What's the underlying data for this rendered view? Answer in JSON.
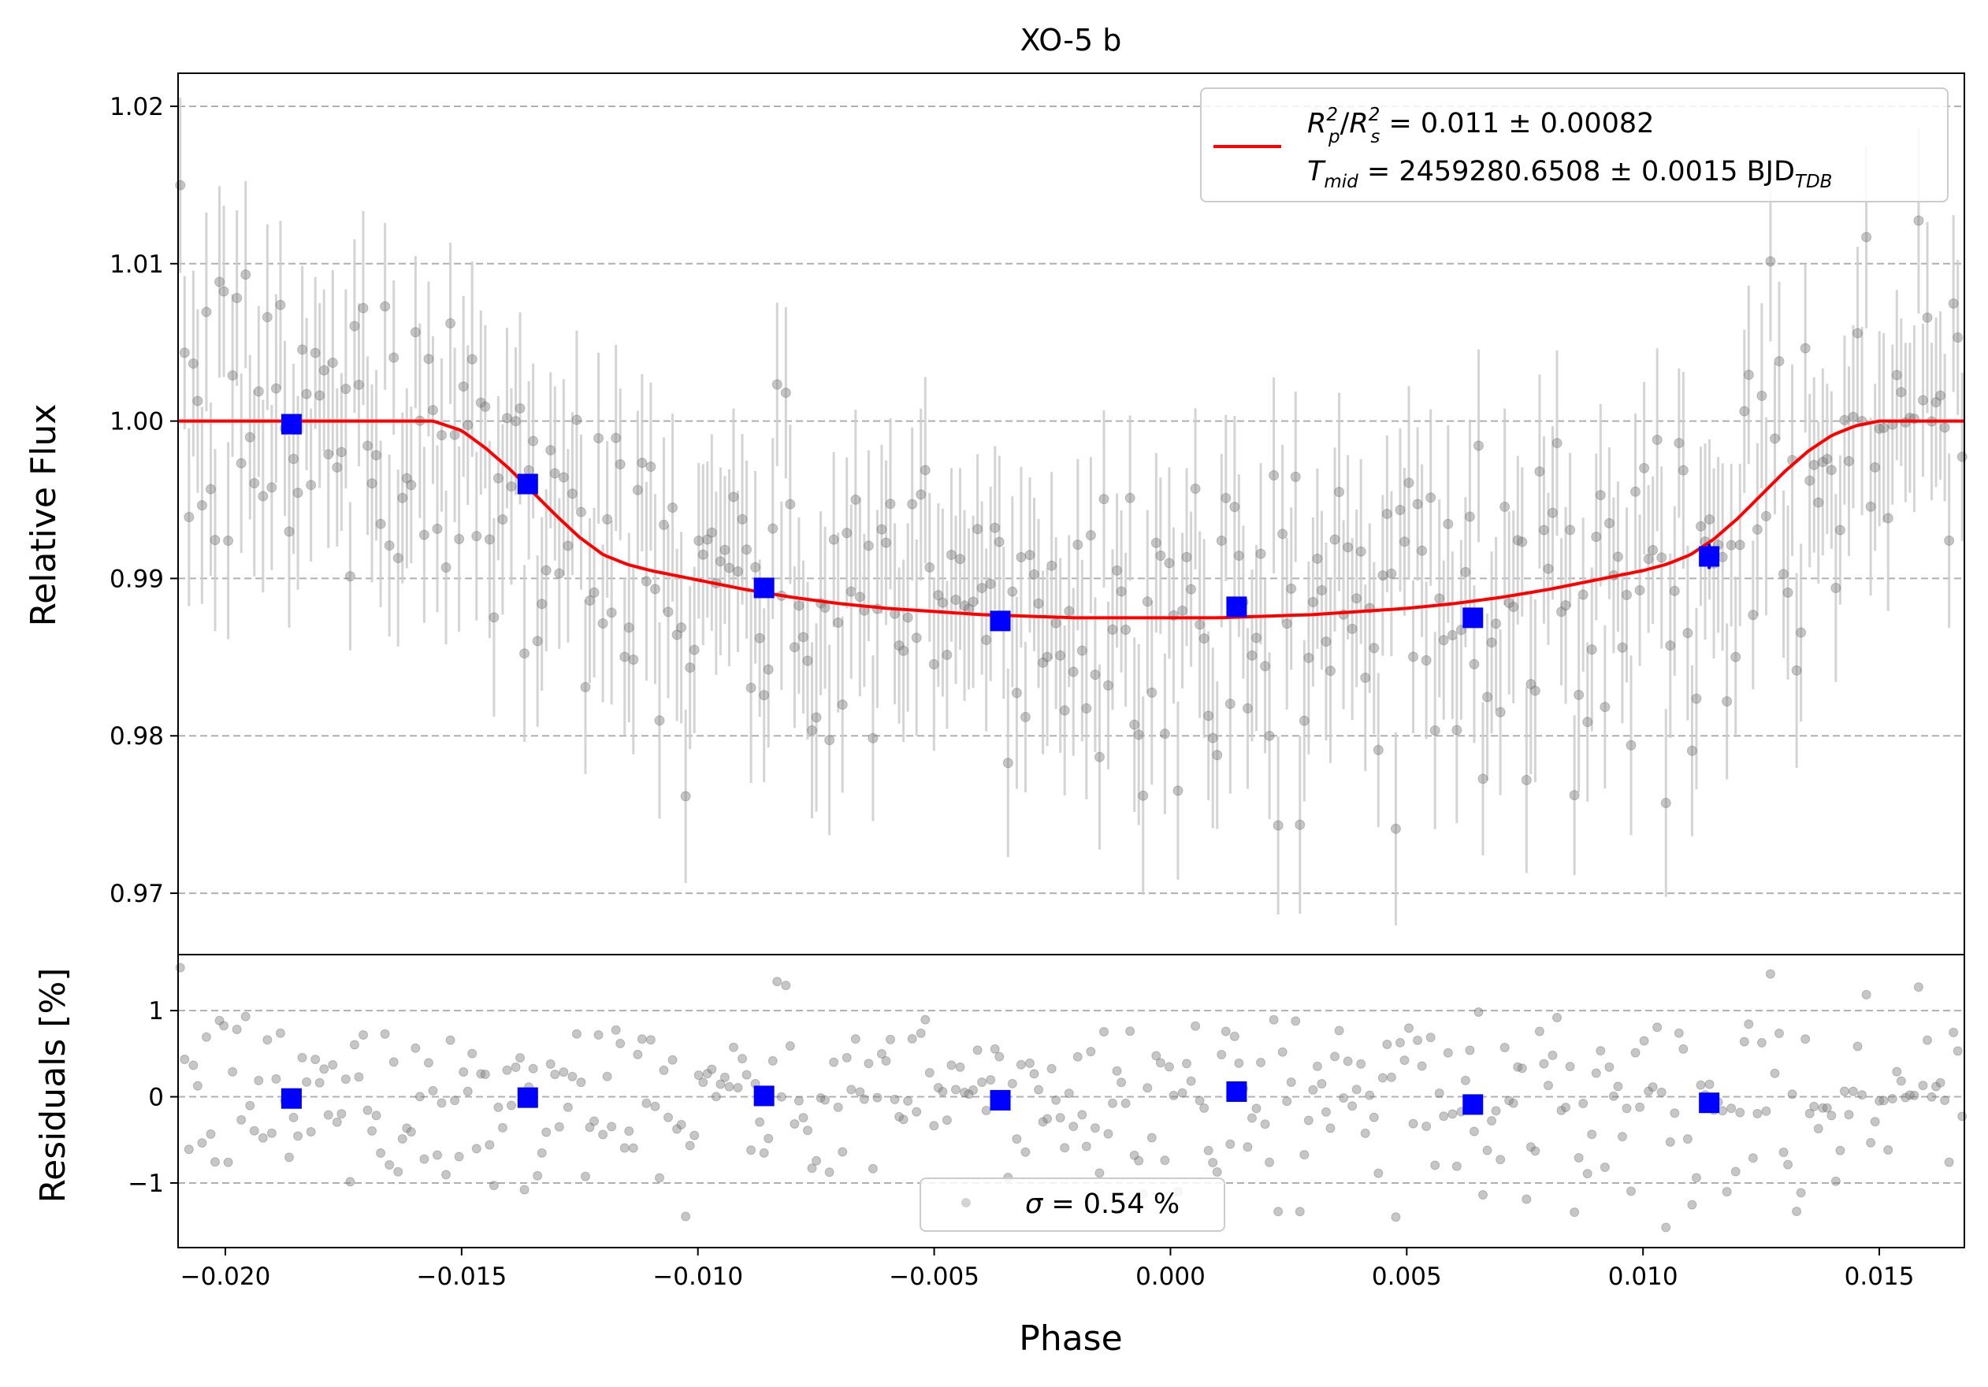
{
  "chart_data": {
    "type": "scatter",
    "title": "XO-5 b",
    "xlabel": "Phase",
    "xlim": [
      -0.021,
      0.0168
    ],
    "xticks": [
      -0.02,
      -0.015,
      -0.01,
      -0.005,
      0.0,
      0.005,
      0.01,
      0.015
    ],
    "xtick_labels": [
      "−0.020",
      "−0.015",
      "−0.010",
      "−0.005",
      "0.000",
      "0.005",
      "0.010",
      "0.015"
    ],
    "grid": "horizontal dashed",
    "colors": {
      "model": "#ff0000",
      "binned": "#0000ff",
      "raw_points": "#808080",
      "error_bars": "#cccccc"
    },
    "top_panel": {
      "ylabel": "Relative Flux",
      "ylim": [
        0.9661,
        1.0221
      ],
      "yticks": [
        0.97,
        0.98,
        0.99,
        1.0,
        1.01,
        1.02
      ],
      "ytick_labels": [
        "0.97",
        "0.98",
        "0.99",
        "1.00",
        "1.01",
        "1.02"
      ],
      "legend": {
        "position": "top-right",
        "label_rp_prefix": "R",
        "label_rp_sub": "p",
        "label_rp_sup": "2",
        "label_rs_prefix": "R",
        "label_rs_sub": "s",
        "label_rs_sup": "2",
        "label_rp_value": " = 0.011 ± 0.00082",
        "label_tmid_prefix": "T",
        "label_tmid_sub": "mid",
        "label_tmid_value": " = 2459280.6508 ± 0.0015 BJD",
        "label_tmid_unit_sub": "TDB"
      },
      "model": {
        "name": "transit model",
        "x": [
          -0.021,
          -0.0156,
          -0.015,
          -0.0145,
          -0.014,
          -0.0135,
          -0.013,
          -0.0125,
          -0.012,
          -0.0115,
          -0.011,
          -0.01,
          -0.009,
          -0.008,
          -0.007,
          -0.006,
          -0.005,
          -0.004,
          -0.003,
          -0.002,
          -0.001,
          0.0,
          0.001,
          0.002,
          0.003,
          0.004,
          0.005,
          0.006,
          0.007,
          0.008,
          0.009,
          0.01,
          0.0105,
          0.011,
          0.0115,
          0.012,
          0.0125,
          0.013,
          0.0135,
          0.014,
          0.0145,
          0.015,
          0.0155,
          0.0168
        ],
        "y": [
          1.0,
          1.0,
          0.9994,
          0.9983,
          0.997,
          0.9955,
          0.994,
          0.9926,
          0.9915,
          0.9909,
          0.9905,
          0.9899,
          0.9893,
          0.9888,
          0.9884,
          0.9881,
          0.9879,
          0.9877,
          0.9876,
          0.9875,
          0.9875,
          0.9875,
          0.9875,
          0.9876,
          0.9877,
          0.9879,
          0.9881,
          0.9884,
          0.9888,
          0.9893,
          0.9899,
          0.9905,
          0.9909,
          0.9915,
          0.9925,
          0.9938,
          0.9953,
          0.9968,
          0.9981,
          0.9991,
          0.9997,
          1.0,
          1.0,
          1.0
        ]
      },
      "binned": {
        "name": "binned data",
        "x": [
          -0.0186,
          -0.0136,
          -0.0086,
          -0.0036,
          0.0014,
          0.0064,
          0.0114
        ],
        "y": [
          0.9998,
          0.996,
          0.9894,
          0.9873,
          0.9882,
          0.9875,
          0.9914
        ],
        "yerr": [
          0.0005,
          0.0005,
          0.0005,
          0.0005,
          0.0005,
          0.0005,
          0.0008
        ]
      },
      "raw_error_estimate": 0.0055
    },
    "bottom_panel": {
      "ylabel": "Residuals [%]",
      "ylim": [
        -1.75,
        1.65
      ],
      "yticks": [
        -1,
        0,
        1
      ],
      "ytick_labels": [
        "−1",
        "0",
        "1"
      ],
      "legend": {
        "position": "bottom-center",
        "sigma_symbol": "σ",
        "sigma_value": " = 0.54 %"
      },
      "binned": {
        "x": [
          -0.0186,
          -0.0136,
          -0.0086,
          -0.0036,
          0.0014,
          0.0064,
          0.0114
        ],
        "y": [
          -0.02,
          -0.01,
          0.01,
          -0.04,
          0.06,
          -0.09,
          -0.07
        ]
      },
      "raw_scatter_sigma": 0.54
    },
    "raw_points": {
      "count": 410,
      "note_x_range": [
        -0.021,
        0.0168
      ]
    }
  }
}
